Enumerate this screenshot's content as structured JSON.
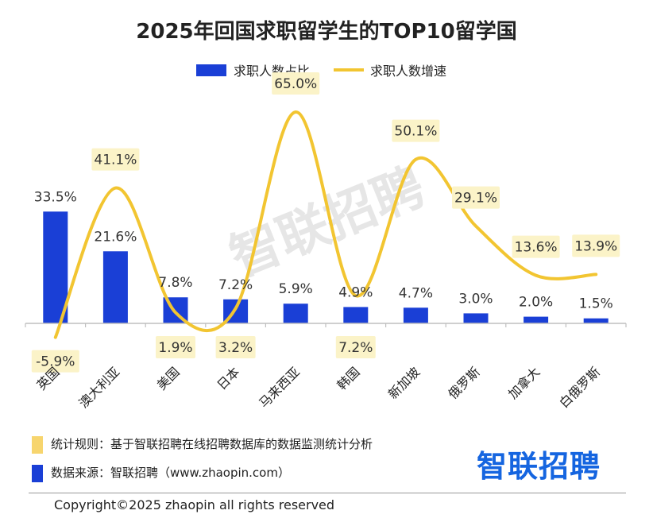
{
  "chart_data": {
    "type": "bar",
    "title": "2025年回国求职留学生的TOP10留学国",
    "categories": [
      "英国",
      "澳大利亚",
      "美国",
      "日本",
      "马来西亚",
      "韩国",
      "新加坡",
      "俄罗斯",
      "加拿大",
      "白俄罗斯"
    ],
    "series": [
      {
        "name": "求职人数占比",
        "type": "bar",
        "color": "#1a3fd6",
        "values": [
          33.5,
          21.6,
          7.8,
          7.2,
          5.9,
          4.9,
          4.7,
          3.0,
          2.0,
          1.5
        ],
        "labels": [
          "33.5%",
          "21.6%",
          "7.8%",
          "7.2%",
          "5.9%",
          "4.9%",
          "4.7%",
          "3.0%",
          "2.0%",
          "1.5%"
        ]
      },
      {
        "name": "求职人数增速",
        "type": "line",
        "color": "#f2c531",
        "values": [
          -5.9,
          41.1,
          1.9,
          3.2,
          65.0,
          7.2,
          50.1,
          29.1,
          13.6,
          13.9
        ],
        "labels": [
          "-5.9%",
          "41.1%",
          "1.9%",
          "3.2%",
          "65.0%",
          "7.2%",
          "50.1%",
          "29.1%",
          "13.6%",
          "13.9%"
        ]
      }
    ],
    "legend_position": "top-center",
    "grid": false
  },
  "watermark": "智联招聘",
  "notes": {
    "rule": "统计规则：基于智联招聘在线招聘数据库的数据监测统计分析",
    "source": "数据来源：智联招聘（www.zhaopin.com）",
    "rule_color": "#f7d56e",
    "source_color": "#1a3fd6"
  },
  "brand": "智联招聘",
  "brand_color": "#1565e0",
  "copyright": "Copyright©2025 zhaopin all rights reserved"
}
